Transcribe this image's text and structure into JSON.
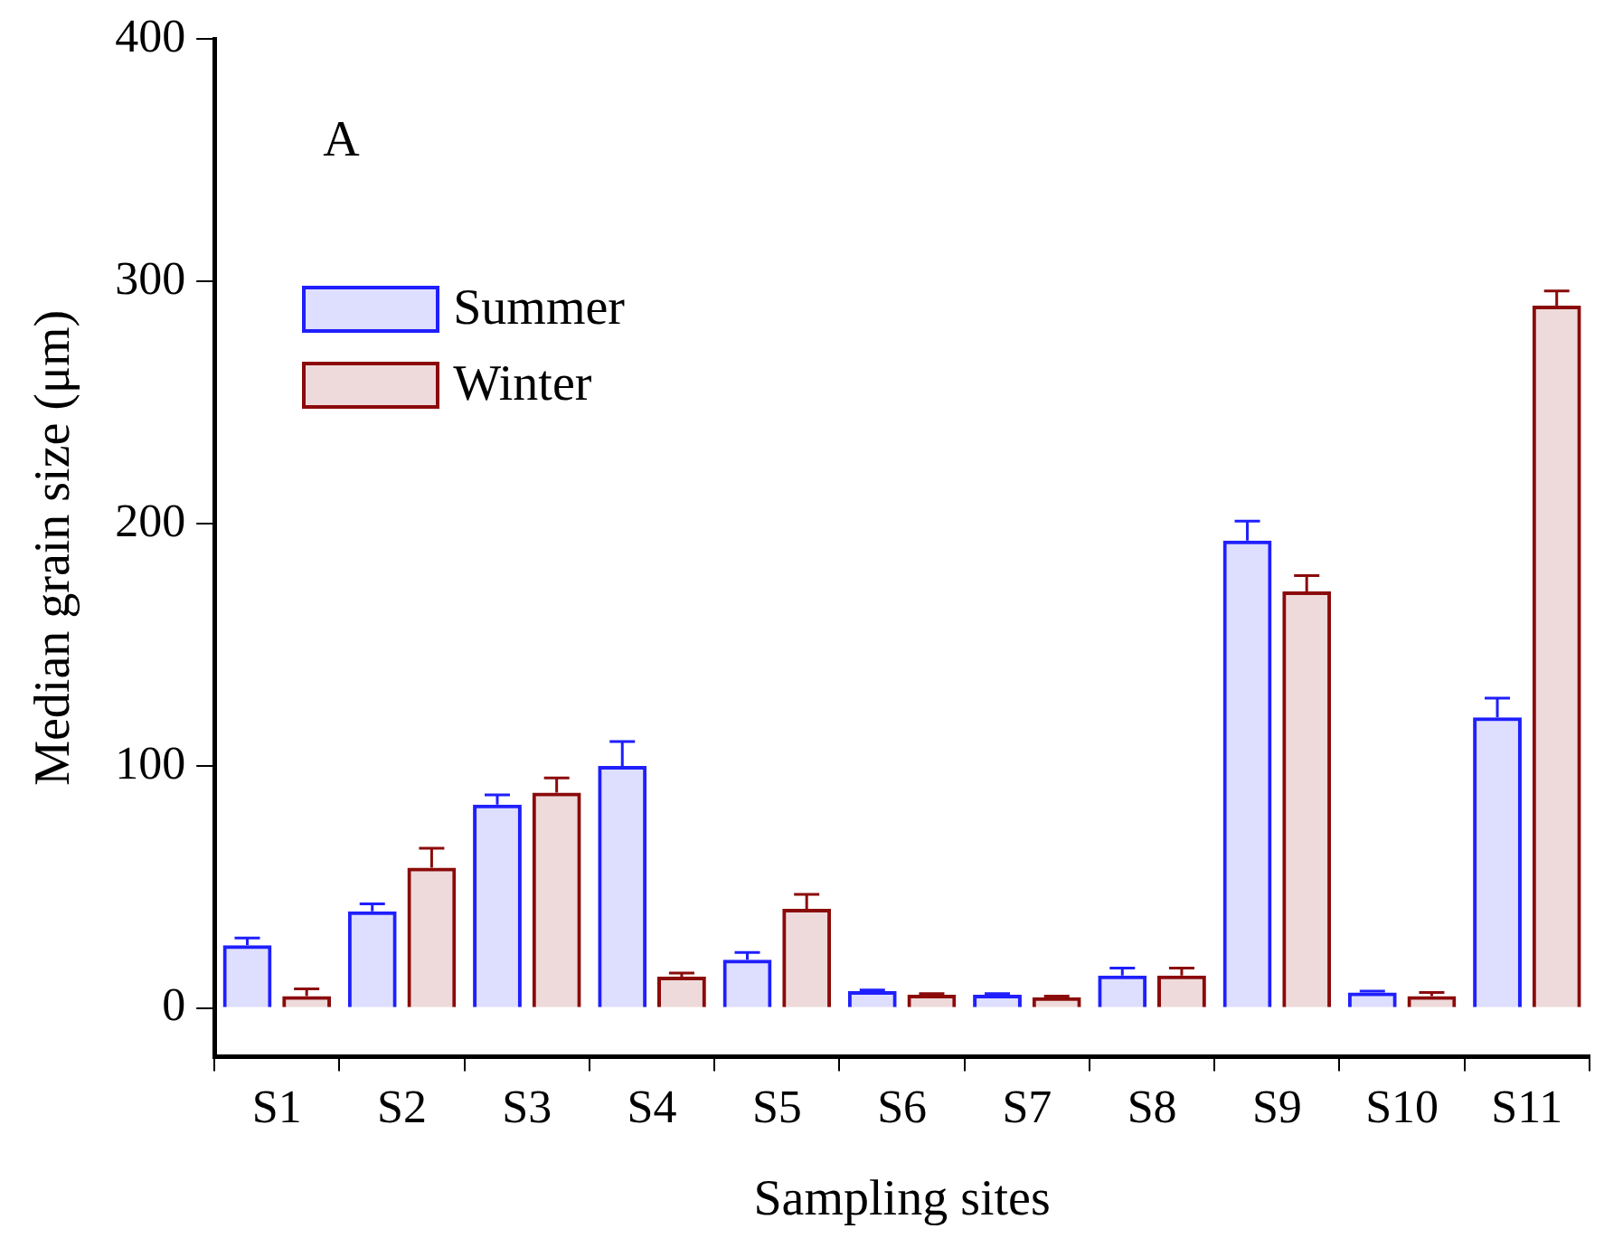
{
  "chart_data": {
    "type": "bar",
    "xlabel": "Sampling sites",
    "ylabel": "Median grain size (μm)",
    "annotations": [
      "A"
    ],
    "categories": [
      "S1",
      "S2",
      "S3",
      "S4",
      "S5",
      "S6",
      "S7",
      "S8",
      "S9",
      "S10",
      "S11"
    ],
    "series": [
      {
        "name": "Summer",
        "color": "#1f1fff",
        "values": [
          26,
          40,
          84,
          100,
          20,
          7,
          5.5,
          13.5,
          193,
          6.5,
          120
        ],
        "errors": [
          3,
          3,
          4,
          10,
          3,
          0.5,
          0.5,
          3,
          8,
          0.5,
          8
        ]
      },
      {
        "name": "Winter",
        "color": "#8b0a0a",
        "values": [
          5,
          58,
          89,
          13,
          41,
          5.5,
          4.5,
          13.5,
          172,
          5,
          290
        ],
        "errors": [
          3,
          8,
          6,
          1.5,
          6,
          0.5,
          0.5,
          3,
          6.5,
          1.5,
          6
        ]
      }
    ],
    "ylim": [
      -20,
      400
    ],
    "yticks": [
      0,
      100,
      200,
      300,
      400
    ],
    "grid": false,
    "legend": "top left"
  }
}
